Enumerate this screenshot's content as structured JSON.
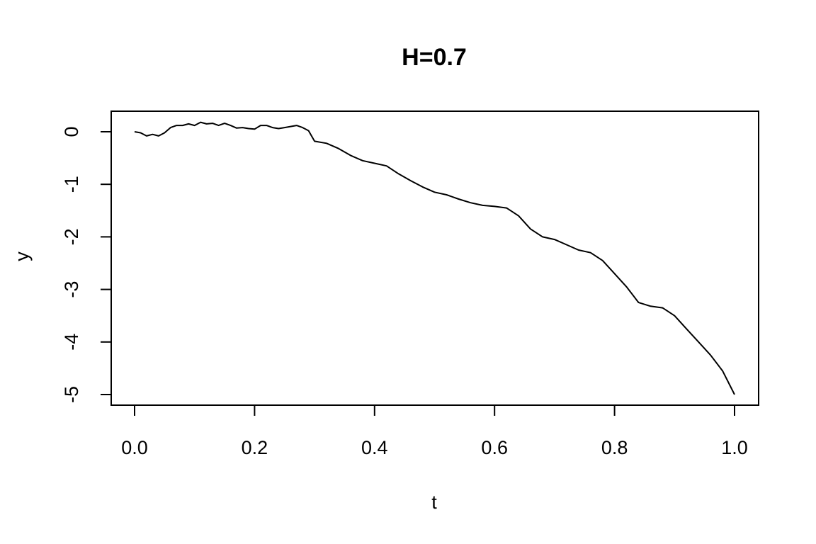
{
  "chart_data": {
    "type": "line",
    "title": "H=0.7",
    "xlabel": "t",
    "ylabel": "y",
    "xlim": [
      0.0,
      1.0
    ],
    "ylim": [
      -5.0,
      0.2
    ],
    "grid": false,
    "x_ticks": [
      0.0,
      0.2,
      0.4,
      0.6,
      0.8,
      1.0
    ],
    "x_tick_labels": [
      "0.0",
      "0.2",
      "0.4",
      "0.6",
      "0.8",
      "1.0"
    ],
    "y_ticks": [
      0,
      -1,
      -2,
      -3,
      -4,
      -5
    ],
    "y_tick_labels": [
      "0",
      "-1",
      "-2",
      "-3",
      "-4",
      "-5"
    ],
    "series": [
      {
        "name": "y",
        "color": "#000000",
        "x": [
          0.0,
          0.01,
          0.02,
          0.03,
          0.04,
          0.05,
          0.06,
          0.07,
          0.08,
          0.09,
          0.1,
          0.11,
          0.12,
          0.13,
          0.14,
          0.15,
          0.16,
          0.17,
          0.18,
          0.19,
          0.2,
          0.21,
          0.22,
          0.23,
          0.24,
          0.25,
          0.26,
          0.27,
          0.28,
          0.29,
          0.3,
          0.32,
          0.34,
          0.36,
          0.38,
          0.4,
          0.42,
          0.44,
          0.46,
          0.48,
          0.5,
          0.52,
          0.54,
          0.56,
          0.58,
          0.6,
          0.62,
          0.64,
          0.66,
          0.68,
          0.7,
          0.72,
          0.74,
          0.76,
          0.78,
          0.8,
          0.82,
          0.84,
          0.86,
          0.88,
          0.9,
          0.92,
          0.94,
          0.96,
          0.98,
          1.0
        ],
        "values": [
          0.0,
          -0.02,
          -0.08,
          -0.05,
          -0.08,
          -0.02,
          0.08,
          0.12,
          0.12,
          0.15,
          0.12,
          0.18,
          0.15,
          0.16,
          0.12,
          0.16,
          0.12,
          0.07,
          0.08,
          0.06,
          0.05,
          0.12,
          0.12,
          0.08,
          0.06,
          0.08,
          0.1,
          0.12,
          0.08,
          0.02,
          -0.18,
          -0.22,
          -0.32,
          -0.45,
          -0.55,
          -0.6,
          -0.65,
          -0.8,
          -0.93,
          -1.05,
          -1.15,
          -1.2,
          -1.28,
          -1.35,
          -1.4,
          -1.42,
          -1.45,
          -1.6,
          -1.85,
          -2.0,
          -2.05,
          -2.15,
          -2.25,
          -2.3,
          -2.45,
          -2.7,
          -2.95,
          -3.25,
          -3.32,
          -3.35,
          -3.5,
          -3.75,
          -4.0,
          -4.25,
          -4.55,
          -5.0
        ]
      }
    ]
  }
}
